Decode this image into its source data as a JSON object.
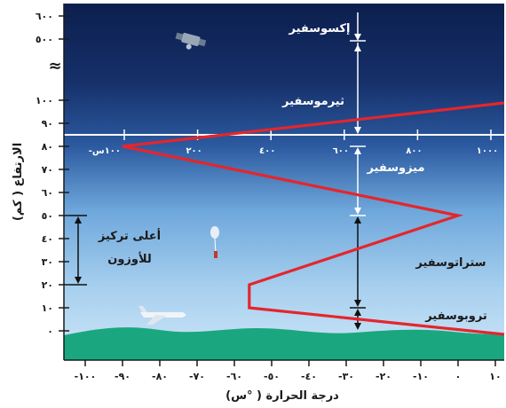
{
  "y_axis": {
    "title": "الارتفاع ( كم)",
    "ticks": [
      {
        "value": 0,
        "label": "٠"
      },
      {
        "value": 10,
        "label": "١٠"
      },
      {
        "value": 20,
        "label": "٢٠"
      },
      {
        "value": 30,
        "label": "٣٠"
      },
      {
        "value": 40,
        "label": "٤٠"
      },
      {
        "value": 50,
        "label": "٥٠"
      },
      {
        "value": 60,
        "label": "٦٠"
      },
      {
        "value": 70,
        "label": "٧٠"
      },
      {
        "value": 80,
        "label": "٨٠"
      },
      {
        "value": 90,
        "label": "٩٠"
      },
      {
        "value": 100,
        "label": "١٠٠"
      },
      {
        "value": 500,
        "label": "٥٠٠"
      },
      {
        "value": 600,
        "label": "٦٠٠"
      }
    ],
    "break_symbol": "≈"
  },
  "x_axis": {
    "title": "درجة الحرارة ( °س)",
    "ticks": [
      {
        "value": -100,
        "label": "-١٠٠"
      },
      {
        "value": -90,
        "label": "-٩٠"
      },
      {
        "value": -80,
        "label": "-٨٠"
      },
      {
        "value": -70,
        "label": "-٧٠"
      },
      {
        "value": -60,
        "label": "-٦٠"
      },
      {
        "value": -50,
        "label": "-٥٠"
      },
      {
        "value": -40,
        "label": "-٤٠"
      },
      {
        "value": -30,
        "label": "-٣٠"
      },
      {
        "value": -20,
        "label": "-٢٠"
      },
      {
        "value": -10,
        "label": "-١٠"
      },
      {
        "value": 0,
        "label": "٠"
      },
      {
        "value": 10,
        "label": "١٠"
      }
    ]
  },
  "high_temp_axis": {
    "ticks": [
      {
        "value": -100,
        "label": "-١٠٠س"
      },
      {
        "value": 200,
        "label": "٢٠٠"
      },
      {
        "value": 400,
        "label": "٤٠٠"
      },
      {
        "value": 600,
        "label": "٦٠٠"
      },
      {
        "value": 800,
        "label": "٨٠٠"
      },
      {
        "value": 1000,
        "label": "١٠٠٠"
      }
    ]
  },
  "layers": {
    "exosphere": "إكسوسفير",
    "thermosphere": "ثيرموسفير",
    "mesosphere": "ميزوسفير",
    "stratosphere": "ستراتوسفير",
    "troposphere": "تروبوسفير"
  },
  "ozone_label": {
    "line1": "أعلى تركيز",
    "line2": "للأوزون"
  },
  "colors": {
    "profile_line": "#e4262c",
    "ground": "#1aa77f",
    "sky_top": "#0c1f4e",
    "sky_bottom": "#bcdcf2"
  },
  "chart_data": {
    "type": "line",
    "x_units": "°C",
    "y_units": "km",
    "series": [
      {
        "name": "",
        "points": [
          {
            "x": 15,
            "y": 0
          },
          {
            "x": -56,
            "y": 10
          },
          {
            "x": -56,
            "y": 20
          },
          {
            "x": 0,
            "y": 50
          },
          {
            "x": -90,
            "y": 80
          },
          {
            "x": 1000,
            "y": 100
          }
        ]
      }
    ],
    "boundaries_km": [
      10,
      50,
      80
    ]
  }
}
